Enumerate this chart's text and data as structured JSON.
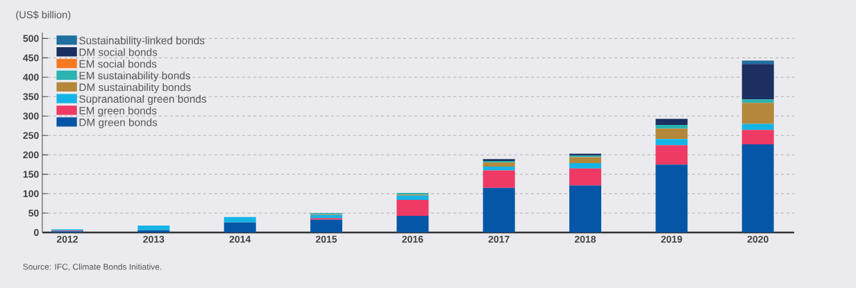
{
  "chart_data": {
    "type": "bar",
    "stacked": true,
    "ylabel": "(US$ billion)",
    "categories": [
      "2012",
      "2013",
      "2014",
      "2015",
      "2016",
      "2017",
      "2018",
      "2019",
      "2020"
    ],
    "series": [
      {
        "name": "DM green bonds",
        "color": "#0556a6",
        "values": [
          3,
          6,
          26,
          33,
          43,
          115,
          121,
          175,
          227
        ]
      },
      {
        "name": "EM green bonds",
        "color": "#ee3a64",
        "values": [
          2,
          0,
          0,
          4,
          41,
          45,
          44,
          50,
          37
        ]
      },
      {
        "name": "Supranational green bonds",
        "color": "#14b5e6",
        "values": [
          3,
          12,
          14,
          8,
          11,
          10,
          14,
          16,
          16
        ]
      },
      {
        "name": "DM sustainability bonds",
        "color": "#b5873a",
        "values": [
          0,
          0,
          0,
          2,
          3,
          10,
          15,
          27,
          54
        ]
      },
      {
        "name": "EM sustainability bonds",
        "color": "#2ab3b0",
        "values": [
          0,
          0,
          0,
          3,
          4,
          4,
          4,
          9,
          9
        ]
      },
      {
        "name": "EM social bonds",
        "color": "#f47920",
        "values": [
          0,
          0,
          0,
          0,
          0,
          0,
          0,
          0,
          0
        ]
      },
      {
        "name": "DM social bonds",
        "color": "#1b3060",
        "values": [
          0,
          0,
          0,
          0,
          0,
          5,
          5,
          16,
          91
        ]
      },
      {
        "name": "Sustainability-linked bonds",
        "color": "#1f6f9f",
        "values": [
          0,
          0,
          0,
          0,
          0,
          0,
          0,
          0,
          9
        ]
      }
    ],
    "ylim": [
      0,
      515
    ],
    "yticks": [
      0,
      50,
      100,
      150,
      200,
      250,
      300,
      350,
      400,
      450,
      500
    ],
    "grid": "y",
    "legend": "top left",
    "annotations": [
      "Source: IFC, Climate Bonds Initiative."
    ]
  }
}
